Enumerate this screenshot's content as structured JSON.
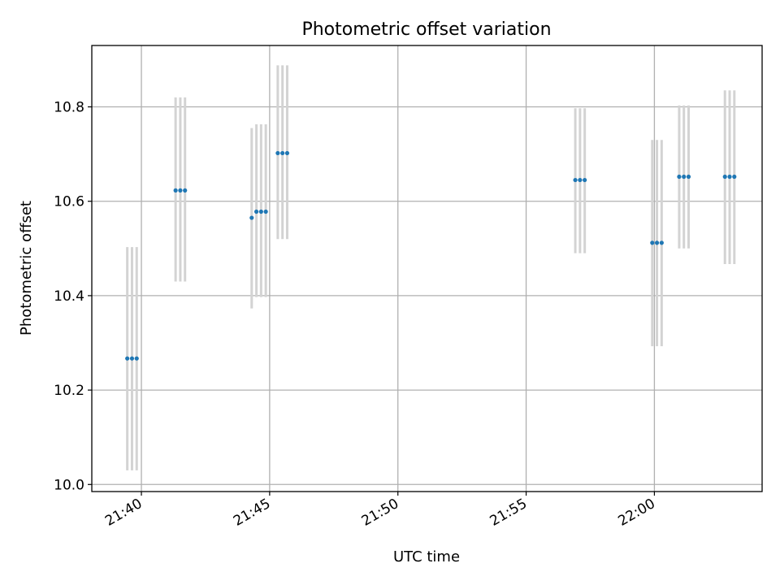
{
  "chart_data": {
    "type": "scatter",
    "title": "Photometric offset variation",
    "xlabel": "UTC time",
    "ylabel": "Photometric offset",
    "x_unit": "HH:MM UTC",
    "xlim": [
      "21:38:04",
      "22:04:12"
    ],
    "ylim": [
      9.985,
      10.93
    ],
    "x_ticks": [
      "21:40",
      "21:45",
      "21:50",
      "21:55",
      "22:00"
    ],
    "y_ticks": [
      "10.0",
      "10.2",
      "10.4",
      "10.6",
      "10.8"
    ],
    "grid": true,
    "colors": {
      "point": "#1f77b4",
      "errorbar": "#d3d3d3",
      "grid": "#b0b0b0",
      "axes": "#000000"
    },
    "series": [
      {
        "points": [
          {
            "x": "21:39:27",
            "y": 10.267,
            "yerr_low": 10.03,
            "yerr_high": 10.503
          },
          {
            "x": "21:39:38",
            "y": 10.267,
            "yerr_low": 10.03,
            "yerr_high": 10.503
          },
          {
            "x": "21:39:49",
            "y": 10.267,
            "yerr_low": 10.03,
            "yerr_high": 10.503
          },
          {
            "x": "21:41:20",
            "y": 10.623,
            "yerr_low": 10.43,
            "yerr_high": 10.82
          },
          {
            "x": "21:41:31",
            "y": 10.623,
            "yerr_low": 10.43,
            "yerr_high": 10.82
          },
          {
            "x": "21:41:42",
            "y": 10.623,
            "yerr_low": 10.43,
            "yerr_high": 10.82
          },
          {
            "x": "21:44:18",
            "y": 10.565,
            "yerr_low": 10.373,
            "yerr_high": 10.755
          },
          {
            "x": "21:44:29",
            "y": 10.578,
            "yerr_low": 10.397,
            "yerr_high": 10.763
          },
          {
            "x": "21:44:40",
            "y": 10.578,
            "yerr_low": 10.397,
            "yerr_high": 10.763
          },
          {
            "x": "21:44:51",
            "y": 10.578,
            "yerr_low": 10.397,
            "yerr_high": 10.763
          },
          {
            "x": "21:45:19",
            "y": 10.702,
            "yerr_low": 10.52,
            "yerr_high": 10.888
          },
          {
            "x": "21:45:30",
            "y": 10.702,
            "yerr_low": 10.52,
            "yerr_high": 10.888
          },
          {
            "x": "21:45:41",
            "y": 10.702,
            "yerr_low": 10.52,
            "yerr_high": 10.888
          },
          {
            "x": "21:56:55",
            "y": 10.645,
            "yerr_low": 10.49,
            "yerr_high": 10.797
          },
          {
            "x": "21:57:06",
            "y": 10.645,
            "yerr_low": 10.49,
            "yerr_high": 10.797
          },
          {
            "x": "21:57:17",
            "y": 10.645,
            "yerr_low": 10.49,
            "yerr_high": 10.797
          },
          {
            "x": "21:59:55",
            "y": 10.512,
            "yerr_low": 10.293,
            "yerr_high": 10.73
          },
          {
            "x": "22:00:06",
            "y": 10.512,
            "yerr_low": 10.293,
            "yerr_high": 10.73
          },
          {
            "x": "22:00:17",
            "y": 10.512,
            "yerr_low": 10.293,
            "yerr_high": 10.73
          },
          {
            "x": "22:00:58",
            "y": 10.652,
            "yerr_low": 10.5,
            "yerr_high": 10.803
          },
          {
            "x": "22:01:09",
            "y": 10.652,
            "yerr_low": 10.5,
            "yerr_high": 10.803
          },
          {
            "x": "22:01:20",
            "y": 10.652,
            "yerr_low": 10.5,
            "yerr_high": 10.803
          },
          {
            "x": "22:02:45",
            "y": 10.652,
            "yerr_low": 10.467,
            "yerr_high": 10.835
          },
          {
            "x": "22:02:56",
            "y": 10.652,
            "yerr_low": 10.467,
            "yerr_high": 10.835
          },
          {
            "x": "22:03:07",
            "y": 10.652,
            "yerr_low": 10.467,
            "yerr_high": 10.835
          }
        ]
      }
    ]
  }
}
